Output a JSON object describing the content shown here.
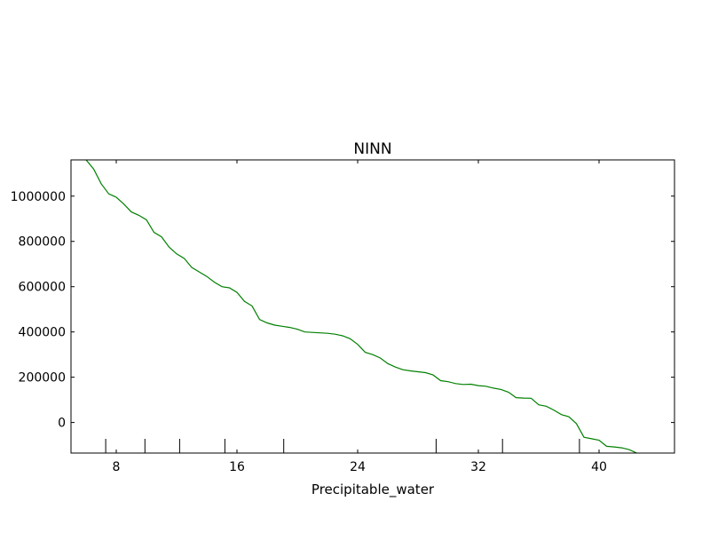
{
  "chart_data": {
    "type": "line",
    "title": "NINN",
    "xlabel": "Precipitable_water",
    "ylabel": "",
    "xlim": [
      5,
      45
    ],
    "ylim": [
      -135000,
      1160000
    ],
    "xticks": [
      8,
      16,
      24,
      32,
      40
    ],
    "xtick_labels": [
      "8",
      "16",
      "24",
      "32",
      "40"
    ],
    "yticks": [
      0,
      200000,
      400000,
      600000,
      800000,
      1000000
    ],
    "ytick_labels": [
      "0",
      "200000",
      "400000",
      "600000",
      "800000",
      "1000000"
    ],
    "rug_x": [
      7.3,
      9.9,
      12.2,
      15.2,
      19.1,
      29.2,
      33.6,
      38.7
    ],
    "grid": false,
    "legend": "none",
    "line_color": "#008000",
    "series": [
      {
        "x": [
          6.0,
          6.5,
          7.0,
          7.5,
          8.0,
          8.5,
          9.0,
          9.5,
          10.0,
          10.5,
          11.0,
          11.5,
          12.0,
          12.5,
          13.0,
          13.5,
          14.0,
          14.5,
          15.0,
          15.5,
          16.0,
          16.5,
          17.0,
          17.5,
          18.0,
          18.5,
          19.0,
          19.5,
          20.0,
          20.5,
          21.0,
          21.5,
          22.0,
          22.5,
          23.0,
          23.5,
          24.0,
          24.5,
          25.0,
          25.5,
          26.0,
          26.5,
          27.0,
          27.5,
          28.0,
          28.5,
          29.0,
          29.5,
          30.0,
          30.5,
          31.0,
          31.5,
          32.0,
          32.5,
          33.0,
          33.5,
          34.0,
          34.5,
          35.0,
          35.5,
          36.0,
          36.5,
          37.0,
          37.5,
          38.0,
          38.5,
          39.0,
          39.5,
          40.0,
          40.5,
          41.0,
          41.5,
          42.0,
          42.5
        ],
        "y": [
          1160000,
          1120000,
          1055000,
          1010000,
          995000,
          965000,
          930000,
          915000,
          895000,
          840000,
          820000,
          775000,
          745000,
          725000,
          685000,
          665000,
          645000,
          620000,
          600000,
          595000,
          575000,
          535000,
          515000,
          455000,
          440000,
          430000,
          425000,
          420000,
          412000,
          400000,
          398000,
          396000,
          394000,
          390000,
          383000,
          370000,
          345000,
          310000,
          300000,
          285000,
          260000,
          245000,
          233000,
          228000,
          224000,
          220000,
          210000,
          185000,
          180000,
          172000,
          168000,
          169000,
          163000,
          160000,
          152000,
          146000,
          134000,
          110000,
          108000,
          107000,
          78000,
          72000,
          55000,
          35000,
          25000,
          -5000,
          -65000,
          -72000,
          -78000,
          -105000,
          -108000,
          -112000,
          -120000,
          -135000
        ]
      }
    ]
  }
}
